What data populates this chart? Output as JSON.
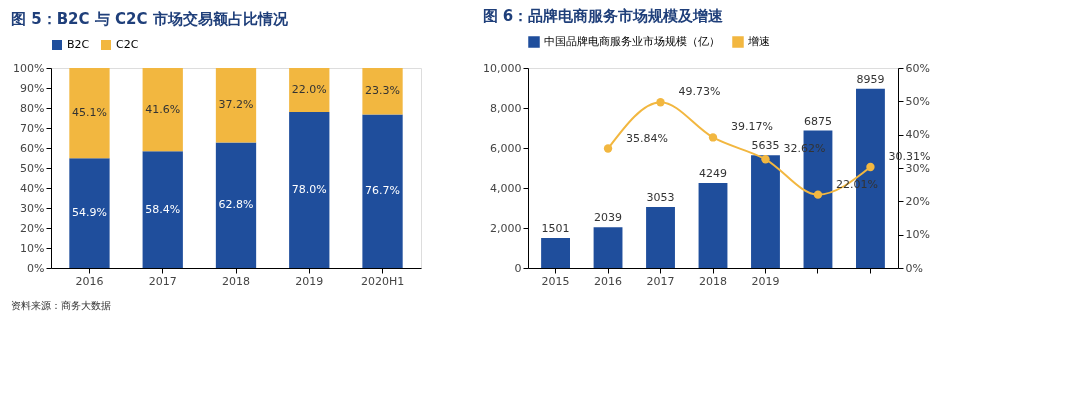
{
  "chart_data": [
    {
      "type": "bar",
      "title": "图 5：B2C 与 C2C 市场交易额占比情况",
      "stacked": true,
      "legend": "top",
      "grid": false,
      "categories": [
        "2016",
        "2017",
        "2018",
        "2019",
        "2020H1"
      ],
      "series": [
        {
          "name": "B2C",
          "color": "#1f4e9c",
          "values": [
            54.9,
            58.4,
            62.8,
            78.0,
            76.7
          ],
          "value_labels": [
            "54.9%",
            "58.4%",
            "62.8%",
            "78.0%",
            "76.7%"
          ]
        },
        {
          "name": "C2C",
          "color": "#f2b740",
          "values": [
            45.1,
            41.6,
            37.2,
            22.0,
            23.3
          ],
          "value_labels": [
            "45.1%",
            "41.6%",
            "37.2%",
            "22.0%",
            "23.3%"
          ]
        }
      ],
      "ylim": [
        0,
        100
      ],
      "yticks": [
        {
          "value": 0,
          "label": "0%"
        },
        {
          "value": 10,
          "label": "10%"
        },
        {
          "value": 20,
          "label": "20%"
        },
        {
          "value": 30,
          "label": "30%"
        },
        {
          "value": 40,
          "label": "40%"
        },
        {
          "value": 50,
          "label": "50%"
        },
        {
          "value": 60,
          "label": "60%"
        },
        {
          "value": 70,
          "label": "70%"
        },
        {
          "value": 80,
          "label": "80%"
        },
        {
          "value": 90,
          "label": "90%"
        },
        {
          "value": 100,
          "label": "100%"
        }
      ],
      "annotations": [
        "资料来源：商务大数据"
      ]
    },
    {
      "type": "bar",
      "title": "图 6：品牌电商服务市场规模及增速",
      "legend": "top",
      "grid": false,
      "marker": "circle",
      "categories": [
        "2015",
        "2016",
        "2017",
        "2018",
        "2019",
        null,
        null
      ],
      "series": [
        {
          "name": "中国品牌电商服务业市场规模（亿）",
          "color": "#1f4e9c",
          "values": [
            1501,
            2039,
            3053,
            4249,
            5635,
            6875,
            8959
          ],
          "value_labels": [
            "1501",
            "2039",
            "3053",
            "4249",
            "5635",
            "6875",
            "8959"
          ]
        },
        {
          "name": "增速",
          "type": "line",
          "axis": "y2",
          "color": "#f2b740",
          "values": [
            null,
            35.84,
            49.73,
            39.17,
            32.62,
            22.01,
            30.31
          ],
          "value_labels": [
            null,
            "35.84%",
            "49.73%",
            "39.17%",
            "32.62%",
            "22.01%",
            "30.31%"
          ]
        }
      ],
      "ylim": [
        0,
        10000
      ],
      "yticks": [
        0,
        {
          "value": 2000,
          "label": "2,000"
        },
        {
          "value": 4000,
          "label": "4,000"
        },
        {
          "value": 6000,
          "label": "6,000"
        },
        {
          "value": 8000,
          "label": "8,000"
        },
        {
          "value": 10000,
          "label": "10,000"
        }
      ],
      "y2lim": [
        0,
        60
      ],
      "y2ticks": [
        {
          "value": 0,
          "label": "0%"
        },
        {
          "value": 10,
          "label": "10%"
        },
        {
          "value": 20,
          "label": "20%"
        },
        {
          "value": 30,
          "label": "30%"
        },
        {
          "value": 40,
          "label": "40%"
        },
        {
          "value": 50,
          "label": "50%"
        },
        {
          "value": 60,
          "label": "60%"
        }
      ]
    }
  ]
}
